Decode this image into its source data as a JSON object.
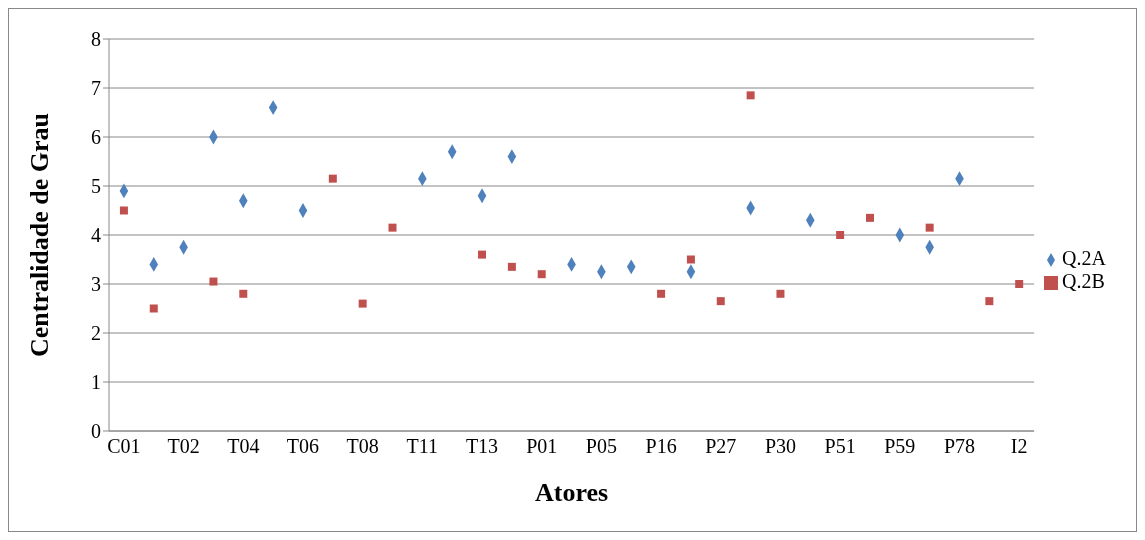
{
  "chart_data": {
    "type": "scatter",
    "xlabel": "Atores",
    "ylabel": "Centralidade de Grau",
    "categories": [
      "C01",
      null,
      "T02",
      null,
      "T04",
      null,
      "T06",
      null,
      "T08",
      null,
      "T11",
      null,
      "T13",
      null,
      "P01",
      null,
      "P05",
      null,
      "P16",
      null,
      "P27",
      null,
      "P30",
      null,
      "P51",
      null,
      "P59",
      null,
      "P78",
      null,
      "I2"
    ],
    "series": [
      {
        "name": "Q.2A",
        "color": "#4f81bd",
        "marker": "diamond",
        "values": [
          4.9,
          3.4,
          3.75,
          6.0,
          4.7,
          6.6,
          4.5,
          null,
          null,
          null,
          5.15,
          5.7,
          4.8,
          5.6,
          null,
          3.4,
          3.25,
          3.35,
          null,
          3.25,
          null,
          4.55,
          null,
          4.3,
          null,
          null,
          4.0,
          3.75,
          5.15,
          null,
          null
        ]
      },
      {
        "name": "Q.2B",
        "color": "#c0504d",
        "marker": "square",
        "values": [
          4.5,
          2.5,
          null,
          3.05,
          2.8,
          null,
          null,
          5.15,
          2.6,
          4.15,
          null,
          null,
          3.6,
          3.35,
          3.2,
          null,
          null,
          null,
          2.8,
          3.5,
          2.65,
          6.85,
          2.8,
          null,
          4.0,
          4.35,
          null,
          4.15,
          null,
          2.65,
          3.0
        ]
      }
    ],
    "ylim": [
      0,
      8
    ],
    "yticks": [
      0,
      1,
      2,
      3,
      4,
      5,
      6,
      7,
      8
    ],
    "grid": "y",
    "legend": "right"
  }
}
